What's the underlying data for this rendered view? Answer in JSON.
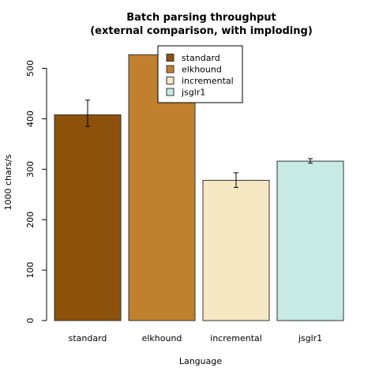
{
  "chart_data": {
    "type": "bar",
    "title_line1": "Batch parsing throughput",
    "title_line2": "(external comparison, with imploding)",
    "xlabel": "Language",
    "ylabel": "1000 chars/s",
    "ylim": [
      0,
      540
    ],
    "yticks": [
      0,
      100,
      200,
      300,
      400,
      500
    ],
    "categories": [
      "standard",
      "elkhound",
      "incremental",
      "jsglr1"
    ],
    "values": [
      408,
      527,
      278,
      316
    ],
    "errors": [
      {
        "low": 385,
        "high": 437
      },
      {
        "low": 518,
        "high": 540
      },
      {
        "low": 264,
        "high": 293
      },
      {
        "low": 312,
        "high": 321
      }
    ],
    "colors": [
      "#8c510a",
      "#bf812d",
      "#f6e8c3",
      "#c7eae5"
    ],
    "legend": {
      "position": "top-center",
      "entries": [
        "standard",
        "elkhound",
        "incremental",
        "jsglr1"
      ]
    },
    "grid": false
  }
}
